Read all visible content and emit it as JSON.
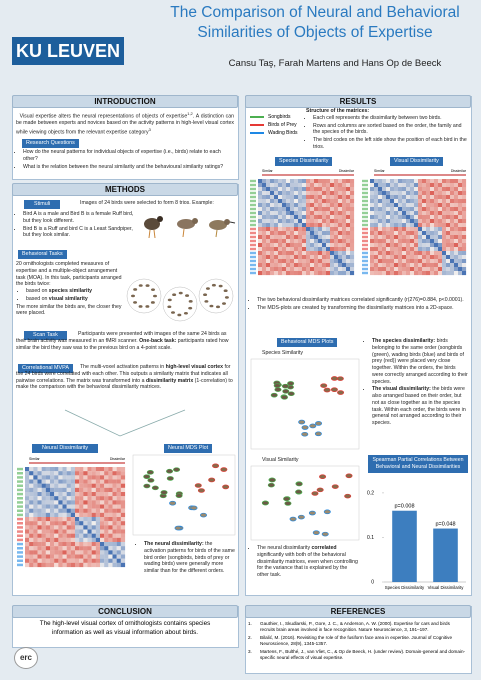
{
  "header": {
    "title_line1": "The Comparison of Neural and Behavioral",
    "title_line2": "Similarities of Objects of Expertise",
    "logo": "KU LEUVEN",
    "authors": "Cansu Taş, Farah Martens and Hans Op de Beeck"
  },
  "introduction": {
    "heading": "INTRODUCTION",
    "text": "Visual expertise alters the neural representations of objects of expertise",
    "text_refs": "1,2",
    "text2": ". A distinction can be made between experts and novices based on the activity patterns in high-level visual cortex while viewing objects from the relevant expertise category",
    "text2_refs": "3",
    "research_questions": {
      "heading": "Research Questions",
      "items": [
        "How do the neural patterns for individual objects of expertise (i.e., birds) relate to each other?",
        "What is the relation between the neural similarity and the behavioural similarity ratings?"
      ]
    }
  },
  "methods": {
    "heading": "METHODS",
    "stimuli": {
      "label": "Stimuli",
      "text": "Images of 24 birds were selected to form 8 trios. Example:",
      "items": [
        "Bird A is a male and Bird B is a female Ruff bird, but they look different.",
        "Bird B is a Ruff and bird C is a Least Sandpiper, but they look similar."
      ]
    },
    "behavioral_tasks": {
      "label": "Behavioral Tasks",
      "text": "20 ornithologists completed measures of expertise and a multiple-object arrangement task (MOA). In this task, participants arranged the birds twice:",
      "items": [
        [
          "based on ",
          "species similarity"
        ],
        [
          "based on ",
          "visual similarity"
        ]
      ],
      "note": "The more similar the birds are, the closer they were placed."
    },
    "scan_task": {
      "label": "Scan Task",
      "text": [
        "Participants were presented with images of the same 24 birds as their brain activity was measured in an fMRI scanner. ",
        "One-back task:",
        " participants rated how similar the bird they saw was to the previous bird on a 4-point scale."
      ]
    },
    "correlational_mvpa": {
      "label": "Correlational MVPA",
      "text": [
        " The multi-voxel activation patterns in ",
        "high-level visual cortex",
        " for the 24 birds were correlated with each other. This outputs a similarity matrix that indicates all pairwise correlations. The matrix was transformed into a ",
        "dissimilarity matrix",
        " (1-correlation) to make the comparison with the behavioral dissimilarity matrices."
      ]
    }
  },
  "neural": {
    "dissimilarity_label": "Neural Dissimilarity",
    "mds_label": "Neural MDS Plot",
    "bullet": [
      "The neural dissimilarity:",
      " the activation patterns for birds of the same bird order (songbirds, birds of prey or wading birds) were generally more similar than for the different orders."
    ]
  },
  "results": {
    "heading": "RESULTS",
    "legend": [
      "Songbirds",
      "Birds of Prey",
      "Wading Birds"
    ],
    "legend_colors": [
      "#4caf50",
      "#e53935",
      "#1e88e5"
    ],
    "structure_title": "Structure of the matrices:",
    "structure_items": [
      "Each cell represents the dissimilarity between two birds.",
      "Rows and columns are sorted based on the order, the family and the species of the birds.",
      "The bird codes on the left side show the position of each bird in the trios."
    ],
    "scale_low": "Similar",
    "scale_high": "Dissimilar",
    "species_label": "Species Dissimilarity",
    "visual_label": "Visual Dissimilarity",
    "bullets": [
      "The two behavioral dissimilarity matrices correlated significantly (r(276)=0.884, p<0.0001).",
      "The MDS-plots are created by transforming the dissimilarity matrices into a 2D-space."
    ],
    "mds_label": "Behavioral MDS Plots",
    "species_similarity": "Species Similarity",
    "visual_similarity": "Visual Similarity",
    "species_bullet": [
      "The species dissimilarity:",
      " birds belonging to the same order (songbirds (green), wading birds (blue) and birds of prey (red)) were placed very close together. Within the orders, the birds were correctly arranged according to their species."
    ],
    "visual_bullet": [
      "The visual dissimilarity:",
      " the birds were also arranged based on their order, but not as close together as in the species task. Within each order, the birds were in general not arranged according to their species."
    ],
    "neural_bullet": [
      "The neural dissimilarity ",
      "correlated",
      " significantly with both of the behavioral dissimilarity matrices, even when controlling for the variance that is explained by the other task."
    ]
  },
  "chart_data": {
    "type": "bar",
    "title": "Spearman Partial Correlations Between Behavioral and Neural Dissimilarities",
    "categories": [
      "Species Dissimilarity",
      "Visual Dissimilarity"
    ],
    "values": [
      0.16,
      0.12
    ],
    "annotations": [
      "p=0.008",
      "p=0.048"
    ],
    "color": "#3d7ebf",
    "ylim": [
      0,
      0.22
    ],
    "yticks": [
      0,
      0.1,
      0.2
    ]
  },
  "conclusion": {
    "heading": "CONCLUSION",
    "text": "The high-level visual cortex of ornithologists contains species information as well as visual information about birds."
  },
  "references": {
    "heading": "REFERENCES",
    "items": [
      "Gauthier, I., Skudlarski, P., Gore, J. C., & Anderson, A. W. (2000). Expertise for cars and birds recruits brain areas involved in face recognition. Nature Neuroscience, 3, 191–197.",
      "Bilalić, M. (2016). Revisiting the role of the fusiform face area in expertise. Journal of Cognitive Neuroscience, 28(9), 1345-1357.",
      "Martens, F., Bulthé, J., van Vliet, C., & Op de Beeck, H. (under review). Domain-general and domain-specific neural effects of visual expertise."
    ],
    "numbers": [
      "1.",
      "2.",
      "3."
    ]
  },
  "footer": {
    "erc": "erc"
  }
}
